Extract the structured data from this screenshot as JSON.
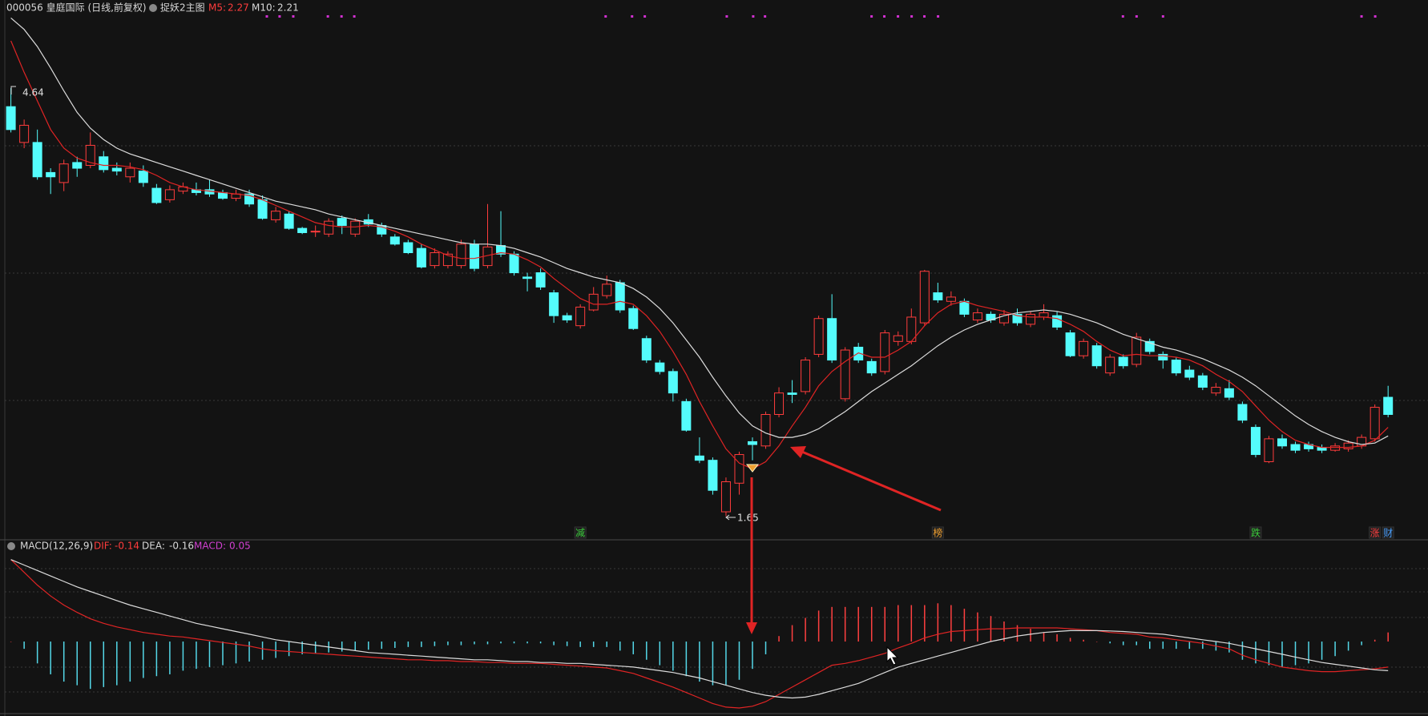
{
  "header": {
    "code_name": "000056 皇庭国际 (日线,前复权)",
    "indicator": "捉妖2主图"
  },
  "chart_data": [
    {
      "type": "candlestick",
      "up_color": "#ff3c3c",
      "down_color": "#54fcfc",
      "ylim": [
        1.49,
        5.16
      ],
      "candles": {
        "open": [
          4.51,
          4.26,
          4.26,
          4.05,
          3.98,
          4.12,
          4.1,
          4.16,
          4.08,
          4.02,
          4.06,
          3.94,
          3.86,
          3.92,
          3.93,
          3.93,
          3.91,
          3.87,
          3.9,
          3.86,
          3.72,
          3.76,
          3.66,
          3.64,
          3.62,
          3.73,
          3.62,
          3.72,
          3.68,
          3.6,
          3.56,
          3.52,
          3.4,
          3.4,
          3.4,
          3.55,
          3.4,
          3.54,
          3.48,
          3.32,
          3.35,
          3.21,
          3.05,
          2.98,
          3.09,
          3.19,
          3.28,
          3.1,
          2.89,
          2.72,
          2.66,
          2.45,
          2.07,
          2.04,
          1.68,
          1.88,
          2.17,
          2.14,
          2.36,
          2.51,
          2.52,
          2.78,
          3.03,
          2.47,
          2.83,
          2.73,
          2.66,
          2.87,
          2.87,
          3.0,
          3.21,
          3.15,
          3.15,
          3.02,
          3.06,
          3.0,
          3.06,
          2.99,
          3.04,
          3.05,
          2.93,
          2.77,
          2.84,
          2.65,
          2.76,
          2.71,
          2.87,
          2.78,
          2.74,
          2.67,
          2.63,
          2.51,
          2.54,
          2.43,
          2.27,
          2.03,
          2.19,
          2.15,
          2.15,
          2.13,
          2.11,
          2.12,
          2.14,
          2.19,
          2.48
        ],
        "high": [
          4.64,
          4.42,
          4.35,
          4.08,
          4.14,
          4.16,
          4.33,
          4.2,
          4.12,
          4.12,
          4.1,
          3.97,
          3.96,
          3.98,
          3.98,
          4.0,
          3.93,
          3.93,
          3.93,
          3.89,
          3.81,
          3.78,
          3.67,
          3.68,
          3.73,
          3.75,
          3.73,
          3.76,
          3.7,
          3.62,
          3.58,
          3.55,
          3.52,
          3.5,
          3.58,
          3.58,
          3.83,
          3.78,
          3.5,
          3.35,
          3.38,
          3.23,
          3.07,
          3.13,
          3.25,
          3.33,
          3.3,
          3.12,
          2.91,
          2.74,
          2.68,
          2.47,
          2.2,
          2.06,
          1.92,
          2.1,
          2.2,
          2.38,
          2.55,
          2.6,
          2.76,
          3.05,
          3.2,
          2.83,
          2.86,
          2.75,
          2.95,
          2.94,
          3.1,
          3.37,
          3.28,
          3.22,
          3.17,
          3.1,
          3.08,
          3.09,
          3.1,
          3.08,
          3.13,
          3.08,
          2.95,
          2.89,
          2.86,
          2.78,
          2.78,
          2.93,
          2.89,
          2.8,
          2.76,
          2.7,
          2.65,
          2.58,
          2.6,
          2.45,
          2.29,
          2.21,
          2.22,
          2.17,
          2.17,
          2.15,
          2.16,
          2.18,
          2.22,
          2.43,
          2.56
        ],
        "low": [
          4.33,
          4.22,
          4.0,
          3.9,
          3.92,
          4.02,
          4.08,
          4.05,
          4.03,
          3.98,
          3.95,
          3.83,
          3.84,
          3.9,
          3.89,
          3.88,
          3.86,
          3.85,
          3.81,
          3.72,
          3.7,
          3.65,
          3.62,
          3.6,
          3.6,
          3.62,
          3.6,
          3.67,
          3.6,
          3.54,
          3.48,
          3.38,
          3.38,
          3.38,
          3.38,
          3.36,
          3.38,
          3.46,
          3.33,
          3.22,
          3.23,
          3.0,
          3.0,
          2.96,
          3.08,
          3.17,
          3.07,
          2.95,
          2.72,
          2.64,
          2.45,
          2.24,
          2.02,
          1.8,
          1.65,
          1.8,
          2.04,
          2.12,
          2.34,
          2.44,
          2.5,
          2.76,
          2.72,
          2.45,
          2.72,
          2.63,
          2.64,
          2.84,
          2.85,
          2.98,
          3.14,
          3.12,
          3.04,
          3.0,
          3.0,
          2.98,
          2.98,
          2.97,
          3.02,
          2.95,
          2.76,
          2.75,
          2.68,
          2.63,
          2.68,
          2.69,
          2.78,
          2.68,
          2.63,
          2.6,
          2.53,
          2.49,
          2.46,
          2.3,
          2.06,
          2.02,
          2.12,
          2.09,
          2.1,
          2.09,
          2.1,
          2.1,
          2.12,
          2.17,
          2.34
        ],
        "close": [
          4.35,
          4.38,
          4.02,
          4.02,
          4.11,
          4.08,
          4.24,
          4.07,
          4.06,
          4.08,
          3.98,
          3.84,
          3.93,
          3.95,
          3.91,
          3.9,
          3.87,
          3.9,
          3.83,
          3.73,
          3.78,
          3.66,
          3.63,
          3.64,
          3.71,
          3.68,
          3.71,
          3.69,
          3.62,
          3.55,
          3.49,
          3.39,
          3.49,
          3.48,
          3.55,
          3.38,
          3.53,
          3.48,
          3.35,
          3.31,
          3.25,
          3.05,
          3.02,
          3.11,
          3.2,
          3.27,
          3.09,
          2.96,
          2.74,
          2.66,
          2.51,
          2.25,
          2.04,
          1.83,
          1.89,
          2.08,
          2.15,
          2.36,
          2.51,
          2.5,
          2.74,
          3.03,
          2.74,
          2.81,
          2.74,
          2.65,
          2.93,
          2.91,
          3.04,
          3.36,
          3.16,
          3.18,
          3.06,
          3.07,
          3.02,
          3.06,
          3.0,
          3.06,
          3.07,
          2.97,
          2.77,
          2.87,
          2.7,
          2.76,
          2.7,
          2.9,
          2.8,
          2.74,
          2.65,
          2.62,
          2.55,
          2.55,
          2.48,
          2.32,
          2.08,
          2.19,
          2.14,
          2.11,
          2.12,
          2.11,
          2.14,
          2.16,
          2.2,
          2.41,
          2.36
        ]
      },
      "series": [
        {
          "name": "M5:",
          "color": "#e02424",
          "values": [
            4.97,
            4.75,
            4.55,
            4.35,
            4.22,
            4.15,
            4.12,
            4.1,
            4.1,
            4.09,
            4.07,
            4.03,
            3.98,
            3.95,
            3.93,
            3.92,
            3.91,
            3.9,
            3.89,
            3.86,
            3.82,
            3.78,
            3.74,
            3.7,
            3.68,
            3.67,
            3.67,
            3.68,
            3.67,
            3.64,
            3.6,
            3.55,
            3.51,
            3.47,
            3.45,
            3.45,
            3.47,
            3.49,
            3.48,
            3.44,
            3.39,
            3.31,
            3.24,
            3.17,
            3.13,
            3.13,
            3.15,
            3.13,
            3.05,
            2.94,
            2.8,
            2.64,
            2.45,
            2.28,
            2.12,
            2.02,
            1.98,
            2.03,
            2.14,
            2.28,
            2.41,
            2.56,
            2.66,
            2.73,
            2.79,
            2.76,
            2.76,
            2.81,
            2.87,
            2.98,
            3.07,
            3.13,
            3.15,
            3.12,
            3.1,
            3.08,
            3.05,
            3.04,
            3.04,
            3.03,
            2.99,
            2.94,
            2.87,
            2.81,
            2.77,
            2.78,
            2.77,
            2.77,
            2.76,
            2.74,
            2.7,
            2.64,
            2.59,
            2.52,
            2.42,
            2.32,
            2.24,
            2.18,
            2.15,
            2.13,
            2.13,
            2.13,
            2.14,
            2.18,
            2.27
          ]
        },
        {
          "name": "M10:",
          "color": "#dcdcdc",
          "values": [
            5.13,
            5.05,
            4.93,
            4.78,
            4.62,
            4.47,
            4.36,
            4.28,
            4.22,
            4.18,
            4.15,
            4.12,
            4.09,
            4.06,
            4.03,
            4.0,
            3.97,
            3.94,
            3.91,
            3.88,
            3.85,
            3.83,
            3.81,
            3.79,
            3.76,
            3.74,
            3.72,
            3.7,
            3.68,
            3.66,
            3.64,
            3.62,
            3.6,
            3.58,
            3.56,
            3.55,
            3.55,
            3.54,
            3.52,
            3.49,
            3.46,
            3.42,
            3.38,
            3.35,
            3.32,
            3.3,
            3.28,
            3.24,
            3.18,
            3.1,
            3.0,
            2.88,
            2.76,
            2.62,
            2.49,
            2.37,
            2.28,
            2.23,
            2.2,
            2.2,
            2.22,
            2.26,
            2.32,
            2.38,
            2.45,
            2.52,
            2.58,
            2.64,
            2.7,
            2.77,
            2.84,
            2.9,
            2.95,
            2.99,
            3.02,
            3.05,
            3.07,
            3.08,
            3.09,
            3.08,
            3.06,
            3.03,
            3.0,
            2.96,
            2.92,
            2.89,
            2.86,
            2.83,
            2.81,
            2.78,
            2.75,
            2.71,
            2.67,
            2.62,
            2.56,
            2.49,
            2.42,
            2.35,
            2.29,
            2.24,
            2.2,
            2.17,
            2.15,
            2.16,
            2.21
          ]
        }
      ],
      "signals": [
        {
          "text": "减",
          "color": "#3ccc3c"
        },
        {
          "text": "榜",
          "color": "#f0a030"
        },
        {
          "text": "跌",
          "color": "#3ccc3c"
        },
        {
          "text": "涨",
          "color": "#ff4040"
        },
        {
          "text": "财",
          "color": "#4aa0ff"
        }
      ]
    },
    {
      "type": "macd",
      "title": "MACD(12,26,9)",
      "ylim": [
        -0.4,
        0.475
      ],
      "series": [
        {
          "name": "DIF:",
          "color": "#e02424",
          "values": [
            0.45,
            0.38,
            0.31,
            0.25,
            0.2,
            0.16,
            0.125,
            0.1,
            0.08,
            0.065,
            0.05,
            0.04,
            0.03,
            0.025,
            0.015,
            0.005,
            -0.005,
            -0.015,
            -0.025,
            -0.04,
            -0.05,
            -0.055,
            -0.06,
            -0.065,
            -0.07,
            -0.075,
            -0.08,
            -0.085,
            -0.09,
            -0.095,
            -0.1,
            -0.1,
            -0.105,
            -0.105,
            -0.11,
            -0.11,
            -0.115,
            -0.115,
            -0.12,
            -0.12,
            -0.12,
            -0.125,
            -0.13,
            -0.135,
            -0.14,
            -0.145,
            -0.16,
            -0.175,
            -0.2,
            -0.225,
            -0.25,
            -0.28,
            -0.31,
            -0.34,
            -0.36,
            -0.365,
            -0.355,
            -0.33,
            -0.29,
            -0.25,
            -0.21,
            -0.17,
            -0.13,
            -0.12,
            -0.105,
            -0.085,
            -0.065,
            -0.035,
            -0.01,
            0.02,
            0.04,
            0.055,
            0.06,
            0.065,
            0.07,
            0.07,
            0.075,
            0.075,
            0.075,
            0.075,
            0.07,
            0.065,
            0.06,
            0.05,
            0.045,
            0.04,
            0.025,
            0.02,
            0.01,
            0.0,
            -0.01,
            -0.025,
            -0.04,
            -0.075,
            -0.1,
            -0.12,
            -0.14,
            -0.15,
            -0.16,
            -0.165,
            -0.165,
            -0.16,
            -0.155,
            -0.15,
            -0.14
          ]
        },
        {
          "name": "DEA:",
          "color": "#dcdcdc",
          "values": [
            0.45,
            0.42,
            0.39,
            0.36,
            0.33,
            0.3,
            0.275,
            0.25,
            0.225,
            0.2,
            0.18,
            0.16,
            0.14,
            0.12,
            0.1,
            0.085,
            0.07,
            0.055,
            0.04,
            0.025,
            0.01,
            0.0,
            -0.01,
            -0.02,
            -0.03,
            -0.04,
            -0.05,
            -0.06,
            -0.065,
            -0.07,
            -0.075,
            -0.08,
            -0.085,
            -0.09,
            -0.095,
            -0.1,
            -0.1,
            -0.105,
            -0.11,
            -0.11,
            -0.115,
            -0.115,
            -0.12,
            -0.12,
            -0.125,
            -0.13,
            -0.135,
            -0.14,
            -0.15,
            -0.16,
            -0.17,
            -0.185,
            -0.2,
            -0.22,
            -0.24,
            -0.26,
            -0.28,
            -0.295,
            -0.305,
            -0.31,
            -0.305,
            -0.29,
            -0.27,
            -0.25,
            -0.23,
            -0.2,
            -0.17,
            -0.14,
            -0.12,
            -0.1,
            -0.08,
            -0.06,
            -0.04,
            -0.02,
            0.0,
            0.015,
            0.03,
            0.04,
            0.05,
            0.055,
            0.06,
            0.06,
            0.06,
            0.058,
            0.055,
            0.05,
            0.045,
            0.04,
            0.03,
            0.02,
            0.01,
            0.0,
            -0.01,
            -0.025,
            -0.04,
            -0.055,
            -0.07,
            -0.085,
            -0.1,
            -0.115,
            -0.125,
            -0.135,
            -0.145,
            -0.155,
            -0.16
          ]
        },
        {
          "name": "MACD:",
          "color": "#d040d0",
          "bars": true,
          "up_color": "#ff4040",
          "down_color": "#54d8e8",
          "values": [
            0.0,
            -0.04,
            -0.12,
            -0.18,
            -0.22,
            -0.24,
            -0.26,
            -0.25,
            -0.24,
            -0.22,
            -0.2,
            -0.19,
            -0.18,
            -0.16,
            -0.15,
            -0.14,
            -0.13,
            -0.12,
            -0.11,
            -0.1,
            -0.09,
            -0.08,
            -0.07,
            -0.065,
            -0.06,
            -0.055,
            -0.05,
            -0.045,
            -0.04,
            -0.035,
            -0.03,
            -0.03,
            -0.025,
            -0.02,
            -0.02,
            -0.015,
            -0.015,
            -0.01,
            -0.01,
            -0.01,
            -0.01,
            -0.02,
            -0.025,
            -0.03,
            -0.03,
            -0.03,
            -0.05,
            -0.07,
            -0.1,
            -0.13,
            -0.16,
            -0.19,
            -0.22,
            -0.24,
            -0.24,
            -0.21,
            -0.15,
            -0.07,
            0.03,
            0.09,
            0.13,
            0.17,
            0.19,
            0.19,
            0.19,
            0.19,
            0.19,
            0.2,
            0.2,
            0.2,
            0.21,
            0.2,
            0.18,
            0.16,
            0.14,
            0.11,
            0.09,
            0.07,
            0.05,
            0.04,
            0.02,
            0.01,
            0.0,
            -0.01,
            -0.02,
            -0.02,
            -0.04,
            -0.04,
            -0.04,
            -0.04,
            -0.04,
            -0.05,
            -0.06,
            -0.1,
            -0.12,
            -0.13,
            -0.14,
            -0.13,
            -0.12,
            -0.1,
            -0.08,
            -0.05,
            -0.02,
            0.01,
            0.05
          ]
        }
      ]
    }
  ]
}
